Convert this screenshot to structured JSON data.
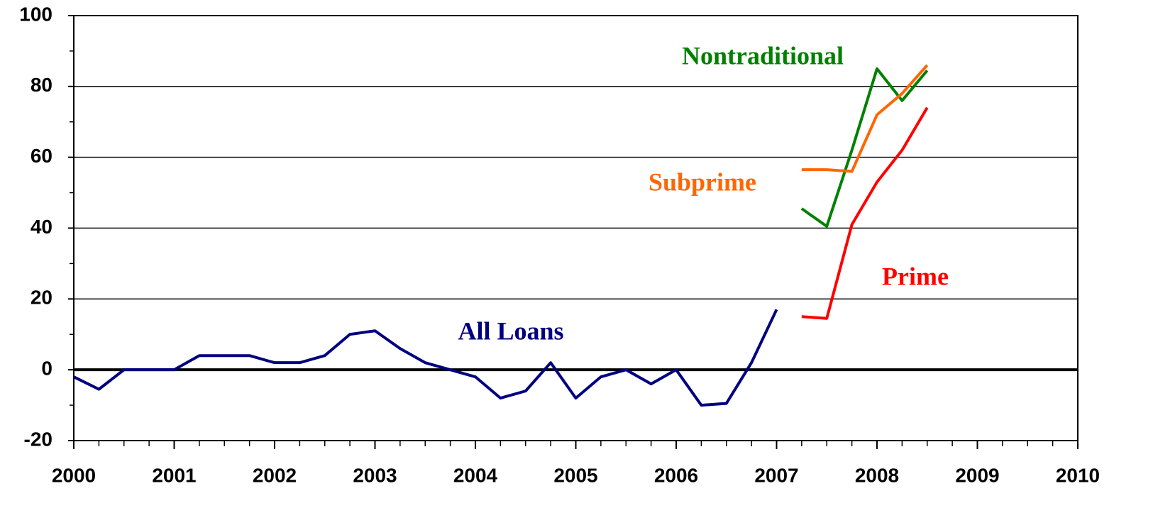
{
  "chart_data": {
    "type": "line",
    "x": [
      2000,
      2000.25,
      2000.5,
      2000.75,
      2001,
      2001.25,
      2001.5,
      2001.75,
      2002,
      2002.25,
      2002.5,
      2002.75,
      2003,
      2003.25,
      2003.5,
      2003.75,
      2004,
      2004.25,
      2004.5,
      2004.75,
      2005,
      2005.25,
      2005.5,
      2005.75,
      2006,
      2006.25,
      2006.5,
      2006.75,
      2007,
      2007.25,
      2007.5,
      2007.75,
      2008,
      2008.25,
      2008.5
    ],
    "series": [
      {
        "name": "All Loans",
        "color": "#000080",
        "values": [
          -2,
          -5.5,
          0,
          0,
          0,
          4,
          4,
          4,
          2,
          2,
          4,
          10,
          11,
          6,
          2,
          0,
          -2,
          -8,
          -6,
          2,
          -8,
          -2,
          0,
          -4,
          0,
          -10,
          -9.5,
          2,
          17,
          null,
          null,
          null,
          null,
          null,
          null
        ]
      },
      {
        "name": "Nontraditional",
        "color": "#008000",
        "values": [
          null,
          null,
          null,
          null,
          null,
          null,
          null,
          null,
          null,
          null,
          null,
          null,
          null,
          null,
          null,
          null,
          null,
          null,
          null,
          null,
          null,
          null,
          null,
          null,
          null,
          null,
          null,
          null,
          null,
          45.5,
          40.5,
          62,
          85,
          76,
          84.5
        ]
      },
      {
        "name": "Subprime",
        "color": "#ff6600",
        "values": [
          null,
          null,
          null,
          null,
          null,
          null,
          null,
          null,
          null,
          null,
          null,
          null,
          null,
          null,
          null,
          null,
          null,
          null,
          null,
          null,
          null,
          null,
          null,
          null,
          null,
          null,
          null,
          null,
          null,
          56.5,
          56.5,
          56,
          72,
          78,
          86
        ]
      },
      {
        "name": "Prime",
        "color": "#ff0000",
        "values": [
          null,
          null,
          null,
          null,
          null,
          null,
          null,
          null,
          null,
          null,
          null,
          null,
          null,
          null,
          null,
          null,
          null,
          null,
          null,
          null,
          null,
          null,
          null,
          null,
          null,
          null,
          null,
          null,
          null,
          15,
          14.5,
          41,
          53,
          62,
          74
        ]
      }
    ],
    "xlim": [
      2000,
      2010
    ],
    "xticks": [
      2000,
      2001,
      2002,
      2003,
      2004,
      2005,
      2006,
      2007,
      2008,
      2009,
      2010
    ],
    "ylim": [
      -20,
      100
    ],
    "yticks": [
      -20,
      0,
      20,
      40,
      60,
      80,
      100
    ],
    "grid": true
  }
}
